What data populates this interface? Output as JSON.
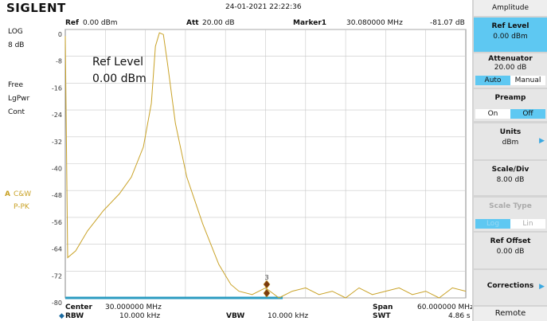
{
  "header": {
    "brand": "SIGLENT",
    "datetime": "24-01-2021  22:22:36",
    "ref_label": "Ref",
    "ref_value": "0.00 dBm",
    "att_label": "Att",
    "att_value": "20.00 dB",
    "marker_label": "Marker1",
    "marker_freq": "30.080000 MHz",
    "marker_level": "-81.07 dB"
  },
  "left_panel": {
    "scale": "LOG",
    "scale_div": "8 dB",
    "trigger": "Free",
    "detector_type": "LgPwr",
    "sweep": "Cont",
    "trace_letter": "A",
    "trace_mode": "C&W",
    "trace_detector": "P-PK"
  },
  "overlay": {
    "title": "Ref Level",
    "value": "0.00 dBm"
  },
  "footer": {
    "center_label": "Center",
    "center_value": "30.000000 MHz",
    "rbw_label": "RBW",
    "rbw_value": "10.000 kHz",
    "vbw_label": "VBW",
    "vbw_value": "10.000 kHz",
    "span_label": "Span",
    "span_value": "60.000000 MHz",
    "swt_label": "SWT",
    "swt_value": "4.86 s"
  },
  "menu": {
    "title": "Amplitude",
    "ref_level": "Ref Level",
    "ref_level_value": "0.00 dBm",
    "attenuator": "Attenuator",
    "attenuator_value": "20.00 dB",
    "auto": "Auto",
    "manual": "Manual",
    "preamp": "Preamp",
    "on": "On",
    "off": "Off",
    "units": "Units",
    "units_value": "dBm",
    "scale_div": "Scale/Div",
    "scale_div_value": "8.00 dB",
    "scale_type": "Scale Type",
    "log": "Log",
    "lin": "Lin",
    "ref_offset": "Ref Offset",
    "ref_offset_value": "0.00 dB",
    "corrections": "Corrections",
    "remote": "Remote"
  },
  "chart_data": {
    "type": "line",
    "color": "#c9a227",
    "marker_label": "3",
    "x": [
      0,
      0.36,
      1.55,
      3.34,
      5.7,
      8.1,
      9.9,
      11.7,
      12.9,
      13.5,
      14.1,
      14.7,
      15.3,
      16.5,
      18.2,
      20.6,
      23.0,
      24.8,
      26,
      28,
      30,
      32,
      34,
      36,
      38,
      40,
      42,
      44,
      46,
      48,
      50,
      52,
      54,
      56,
      58,
      60
    ],
    "values": [
      -2,
      -68,
      -66,
      -60,
      -54,
      -49,
      -44,
      -35,
      -22,
      -5,
      -1,
      -1.5,
      -10,
      -28,
      -44,
      -58,
      -70,
      -76,
      -78,
      -79,
      -77,
      -80,
      -78,
      -77,
      -79,
      -78,
      -80,
      -77,
      -79,
      -78,
      -77,
      -79,
      -78,
      -80,
      -77,
      -78
    ],
    "xlim": [
      0,
      60
    ],
    "ylim": [
      -80,
      0
    ],
    "yticks": [
      0,
      -8,
      -16,
      -24,
      -32,
      -40,
      -48,
      -56,
      -64,
      -72,
      -80
    ],
    "grid": true
  }
}
